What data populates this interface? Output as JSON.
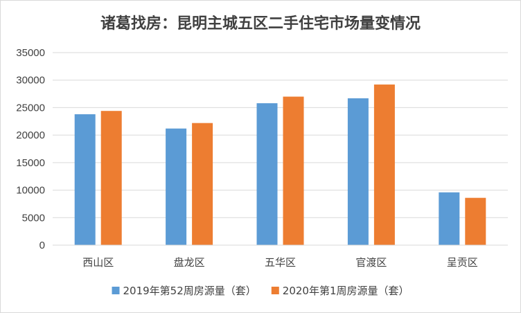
{
  "chart_data": {
    "type": "bar",
    "title": "诸葛找房：昆明主城五区二手住宅市场量变情况",
    "xlabel": "",
    "ylabel": "",
    "categories": [
      "西山区",
      "盘龙区",
      "五华区",
      "官渡区",
      "呈贡区"
    ],
    "series": [
      {
        "name": "2019年第52周房源量（套）",
        "color": "#5b9bd5",
        "values": [
          23800,
          21200,
          25800,
          26700,
          9600
        ]
      },
      {
        "name": "2020年第1周房源量（套）",
        "color": "#ed7d31",
        "values": [
          24400,
          22200,
          27000,
          29200,
          8600
        ]
      }
    ],
    "ylim": [
      0,
      35000
    ],
    "yticks": [
      0,
      5000,
      10000,
      15000,
      20000,
      25000,
      30000,
      35000
    ],
    "grid": true,
    "legend_position": "bottom"
  }
}
